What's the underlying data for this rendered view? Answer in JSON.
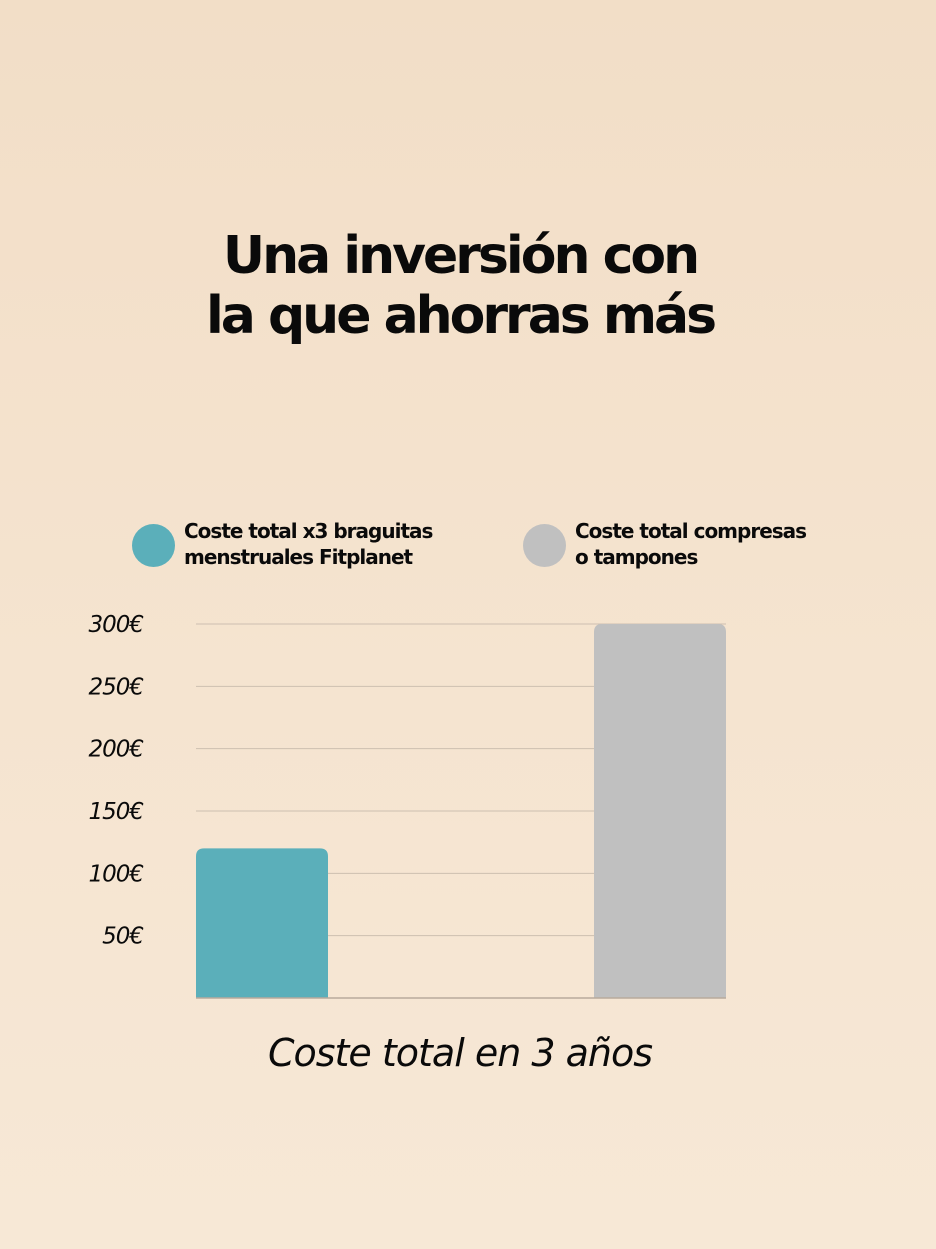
{
  "chart_data": {
    "type": "bar",
    "title_lines": [
      "Una inversión con",
      "la que ahorras más"
    ],
    "xlabel": "Coste total en 3 años",
    "ylabel": "",
    "ylim": [
      0,
      300
    ],
    "yticks": [
      50,
      100,
      150,
      200,
      250,
      300
    ],
    "ytick_labels": [
      "50€",
      "100€",
      "150€",
      "200€",
      "250€",
      "300€"
    ],
    "grid": true,
    "legend_position": "top",
    "series": [
      {
        "legend_lines": [
          "Coste total x3 braguitas",
          "menstruales Fitplanet"
        ],
        "value": 120,
        "color": "#5bafba"
      },
      {
        "legend_lines": [
          "Coste total compresas",
          "o tampones"
        ],
        "value": 300,
        "color": "#c0c0c0"
      }
    ]
  },
  "colors": {
    "gridline": "#cdbfb0",
    "baseline": "#b8aa9c"
  }
}
